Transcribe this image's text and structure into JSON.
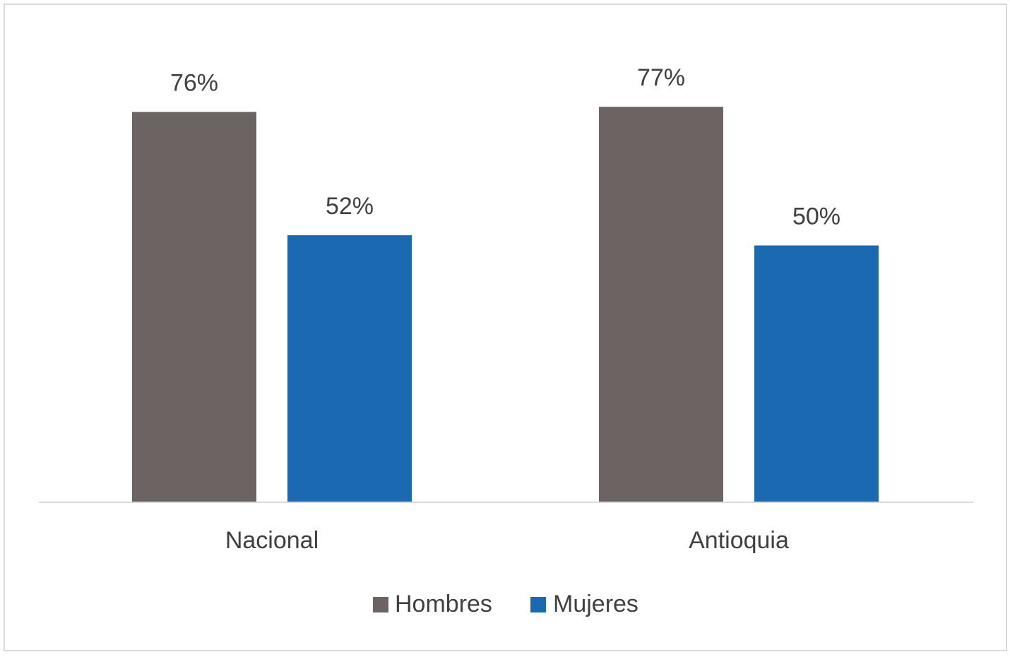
{
  "chart_data": {
    "type": "bar",
    "categories": [
      "Nacional",
      "Antioquia"
    ],
    "series": [
      {
        "name": "Hombres",
        "values": [
          76,
          77
        ],
        "labels": [
          "76%",
          "77%"
        ],
        "color": "#6b6462"
      },
      {
        "name": "Mujeres",
        "values": [
          52,
          50
        ],
        "labels": [
          "52%",
          "50%"
        ],
        "color": "#1b69b1"
      }
    ],
    "title": "",
    "xlabel": "",
    "ylabel": "",
    "ylim": [
      0,
      100
    ],
    "unit": "%",
    "grid": false,
    "legend_position": "bottom",
    "axis_color": "#d9d9d9"
  }
}
